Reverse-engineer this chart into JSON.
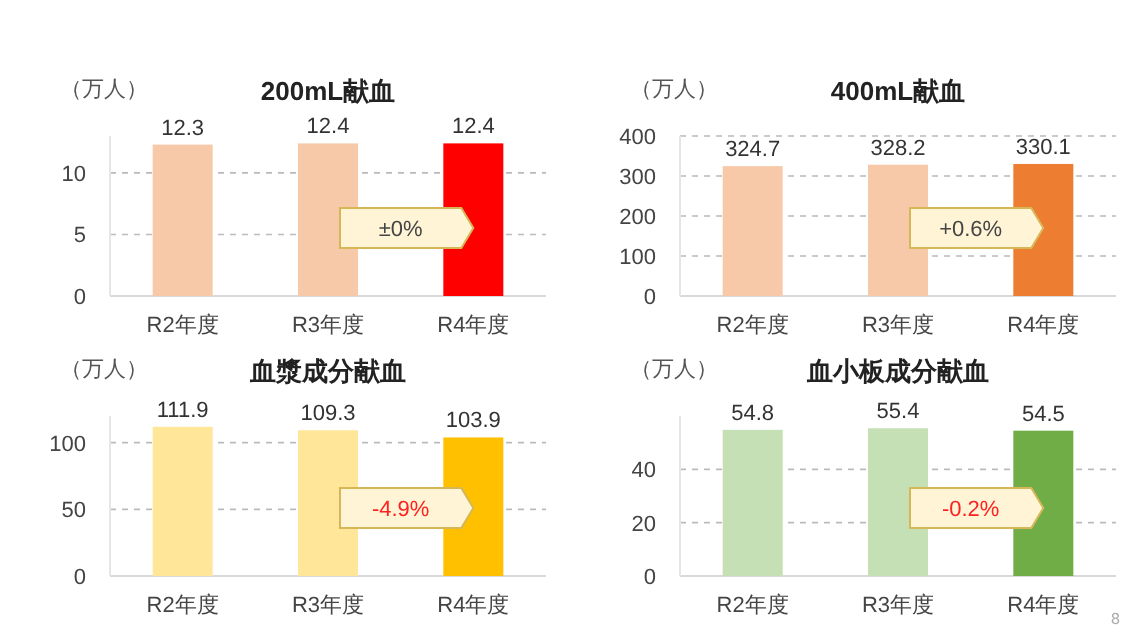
{
  "chart_data": [
    {
      "type": "bar",
      "title": "200mL献血",
      "ylabel": "（万人）",
      "categories": [
        "R2年度",
        "R3年度",
        "R4年度"
      ],
      "values": [
        12.3,
        12.4,
        12.4
      ],
      "colors": [
        "#f8c9a8",
        "#f8c9a8",
        "#ff0000"
      ],
      "ylim": [
        0,
        13
      ],
      "yticks": [
        0,
        5,
        10
      ],
      "grid": "y",
      "data_labels": true,
      "annotations": [
        "±0%"
      ]
    },
    {
      "type": "bar",
      "title": "400mL献血",
      "ylabel": "（万人）",
      "categories": [
        "R2年度",
        "R3年度",
        "R4年度"
      ],
      "values": [
        324.7,
        328.2,
        330.1
      ],
      "colors": [
        "#f8c9a8",
        "#f8c9a8",
        "#ed7d31"
      ],
      "ylim": [
        0,
        400
      ],
      "yticks": [
        0,
        100,
        200,
        300,
        400
      ],
      "grid": "y",
      "data_labels": true,
      "annotations": [
        "+0.6%"
      ]
    },
    {
      "type": "bar",
      "title": "血漿成分献血",
      "ylabel": "（万人）",
      "categories": [
        "R2年度",
        "R3年度",
        "R4年度"
      ],
      "values": [
        111.9,
        109.3,
        103.9
      ],
      "colors": [
        "#ffe699",
        "#ffe699",
        "#ffc000"
      ],
      "ylim": [
        0,
        120
      ],
      "yticks": [
        0,
        50,
        100
      ],
      "grid": "y",
      "data_labels": true,
      "annotations": [
        "-4.9%"
      ]
    },
    {
      "type": "bar",
      "title": "血小板成分献血",
      "ylabel": "（万人）",
      "categories": [
        "R2年度",
        "R3年度",
        "R4年度"
      ],
      "values": [
        54.8,
        55.4,
        54.5
      ],
      "colors": [
        "#c5e0b4",
        "#c5e0b4",
        "#70ad47"
      ],
      "ylim": [
        0,
        60
      ],
      "yticks": [
        0,
        20,
        40
      ],
      "grid": "y",
      "data_labels": true,
      "annotations": [
        "-0.2%",
        "8"
      ]
    }
  ]
}
